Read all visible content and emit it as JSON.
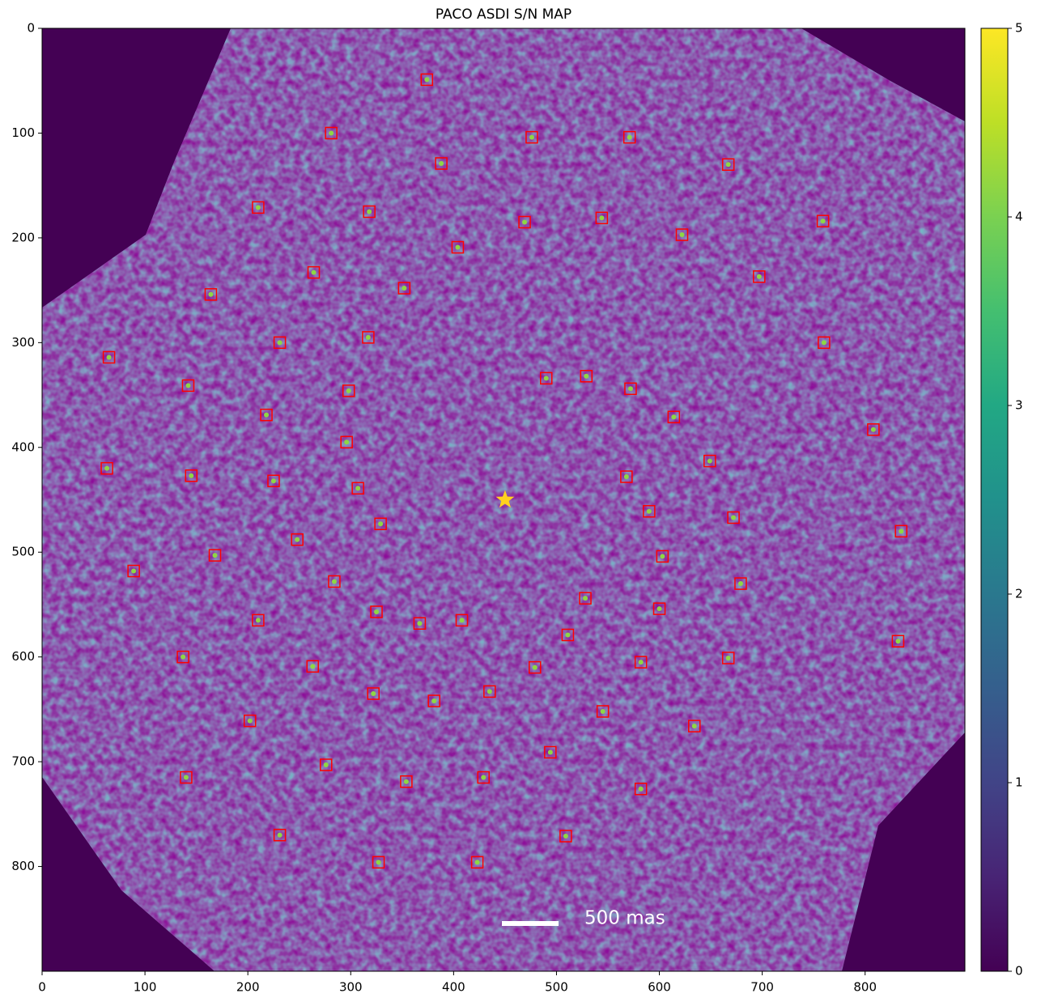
{
  "chart_data": {
    "type": "scatter",
    "title": "PACO ASDI S/N MAP",
    "x": [
      374,
      281,
      476,
      571,
      388,
      667,
      210,
      318,
      469,
      544,
      759,
      622,
      404,
      264,
      697,
      352,
      164,
      231,
      317,
      760,
      65,
      490,
      529,
      142,
      298,
      572,
      218,
      614,
      808,
      296,
      63,
      145,
      225,
      649,
      568,
      307,
      590,
      672,
      329,
      835,
      248,
      168,
      603,
      89,
      284,
      679,
      528,
      325,
      210,
      367,
      408,
      600,
      511,
      832,
      137,
      667,
      582,
      263,
      479,
      322,
      381,
      435,
      545,
      634,
      202,
      494,
      276,
      140,
      354,
      429,
      582,
      231,
      509,
      327,
      423
    ],
    "values": [
      49,
      100,
      104,
      104,
      129,
      130,
      171,
      175,
      185,
      181,
      184,
      197,
      209,
      233,
      237,
      248,
      254,
      300,
      295,
      300,
      314,
      334,
      332,
      341,
      346,
      344,
      369,
      371,
      383,
      395,
      420,
      427,
      432,
      413,
      428,
      439,
      461,
      467,
      473,
      480,
      488,
      503,
      504,
      518,
      528,
      530,
      544,
      557,
      565,
      568,
      565,
      554,
      579,
      585,
      600,
      601,
      605,
      609,
      610,
      635,
      642,
      633,
      652,
      666,
      661,
      691,
      703,
      715,
      719,
      715,
      726,
      770,
      771,
      796,
      796
    ],
    "marker_color": "#ff0000",
    "star": {
      "x": 450,
      "y": 450,
      "color": "#ffd21f"
    },
    "scale_bar": {
      "label": "500 mas"
    },
    "xlim": [
      0,
      897
    ],
    "ylim": [
      0,
      900
    ],
    "y_inverted": true,
    "xticks": [
      0,
      100,
      200,
      300,
      400,
      500,
      600,
      700,
      800
    ],
    "yticks": [
      0,
      100,
      200,
      300,
      400,
      500,
      600,
      700,
      800
    ],
    "colorbar": {
      "lim": [
        0,
        5
      ],
      "ticks": [
        0,
        1,
        2,
        3,
        4,
        5
      ],
      "colormap": "viridis"
    }
  }
}
